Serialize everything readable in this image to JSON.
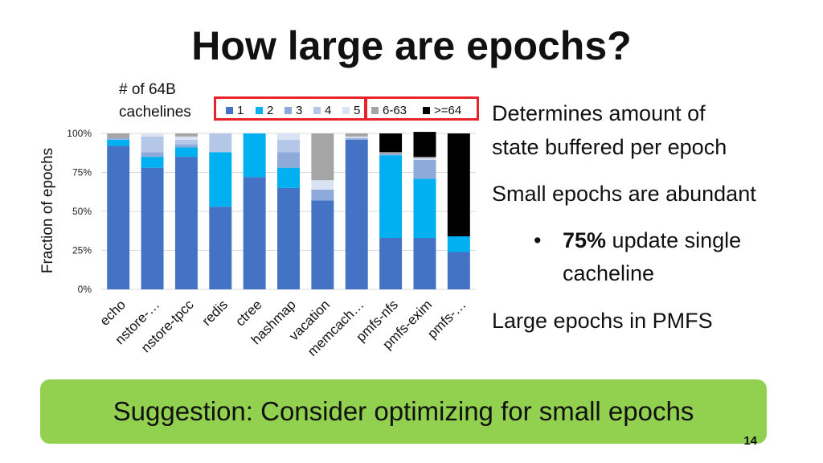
{
  "slide": {
    "title": "How large are epochs?",
    "legend_title_line1": "# of 64B",
    "legend_title_line2": "cachelines",
    "bullets": {
      "b1_line1": "Determines amount of",
      "b1_line2": "state buffered per epoch",
      "b2": "Small epochs are abundant",
      "b3_marker": "•",
      "b3_bold": "75%",
      "b3_rest": " update single",
      "b3_line2": "cacheline",
      "b4": "Large epochs in PMFS"
    },
    "suggestion": "Suggestion: Consider optimizing for small epochs",
    "page_number": "14"
  },
  "chart_data": {
    "type": "bar",
    "stacked": true,
    "categories": [
      "echo",
      "nstore-…",
      "nstore-tpcc",
      "redis",
      "ctree",
      "hashmap",
      "vacation",
      "memcach…",
      "pmfs-nfs",
      "pmfs-exim",
      "pmfs-…"
    ],
    "series": [
      {
        "name": "1",
        "color": "#4472c4",
        "values": [
          92,
          78,
          85,
          53,
          72,
          65,
          57,
          96,
          33,
          33,
          24
        ]
      },
      {
        "name": "2",
        "color": "#00b0f0",
        "values": [
          4,
          7,
          6,
          35,
          28,
          13,
          0,
          0,
          53,
          38,
          10
        ]
      },
      {
        "name": "3",
        "color": "#8eaadb",
        "values": [
          1,
          3,
          2,
          0,
          0,
          10,
          7,
          1,
          1,
          12,
          0
        ]
      },
      {
        "name": "4",
        "color": "#b4c7e7",
        "values": [
          0,
          10,
          3,
          12,
          0,
          8,
          0,
          0,
          0,
          0,
          0
        ]
      },
      {
        "name": "5",
        "color": "#dae3f3",
        "values": [
          0,
          2,
          2,
          0,
          0,
          4,
          6,
          1,
          0,
          1,
          0
        ]
      },
      {
        "name": "6-63",
        "color": "#a5a5a5",
        "values": [
          3,
          0,
          2,
          0,
          0,
          0,
          30,
          2,
          1,
          1,
          0
        ]
      },
      {
        "name": ">=64",
        "color": "#000000",
        "values": [
          0,
          0,
          0,
          0,
          0,
          0,
          0,
          0,
          12,
          16,
          66
        ]
      }
    ],
    "ylabel": "Fraction of  epochs",
    "ylim": [
      0,
      100
    ],
    "yticks": [
      "0%",
      "25%",
      "50%",
      "75%",
      "100%"
    ],
    "grid": true,
    "legend": "top"
  }
}
